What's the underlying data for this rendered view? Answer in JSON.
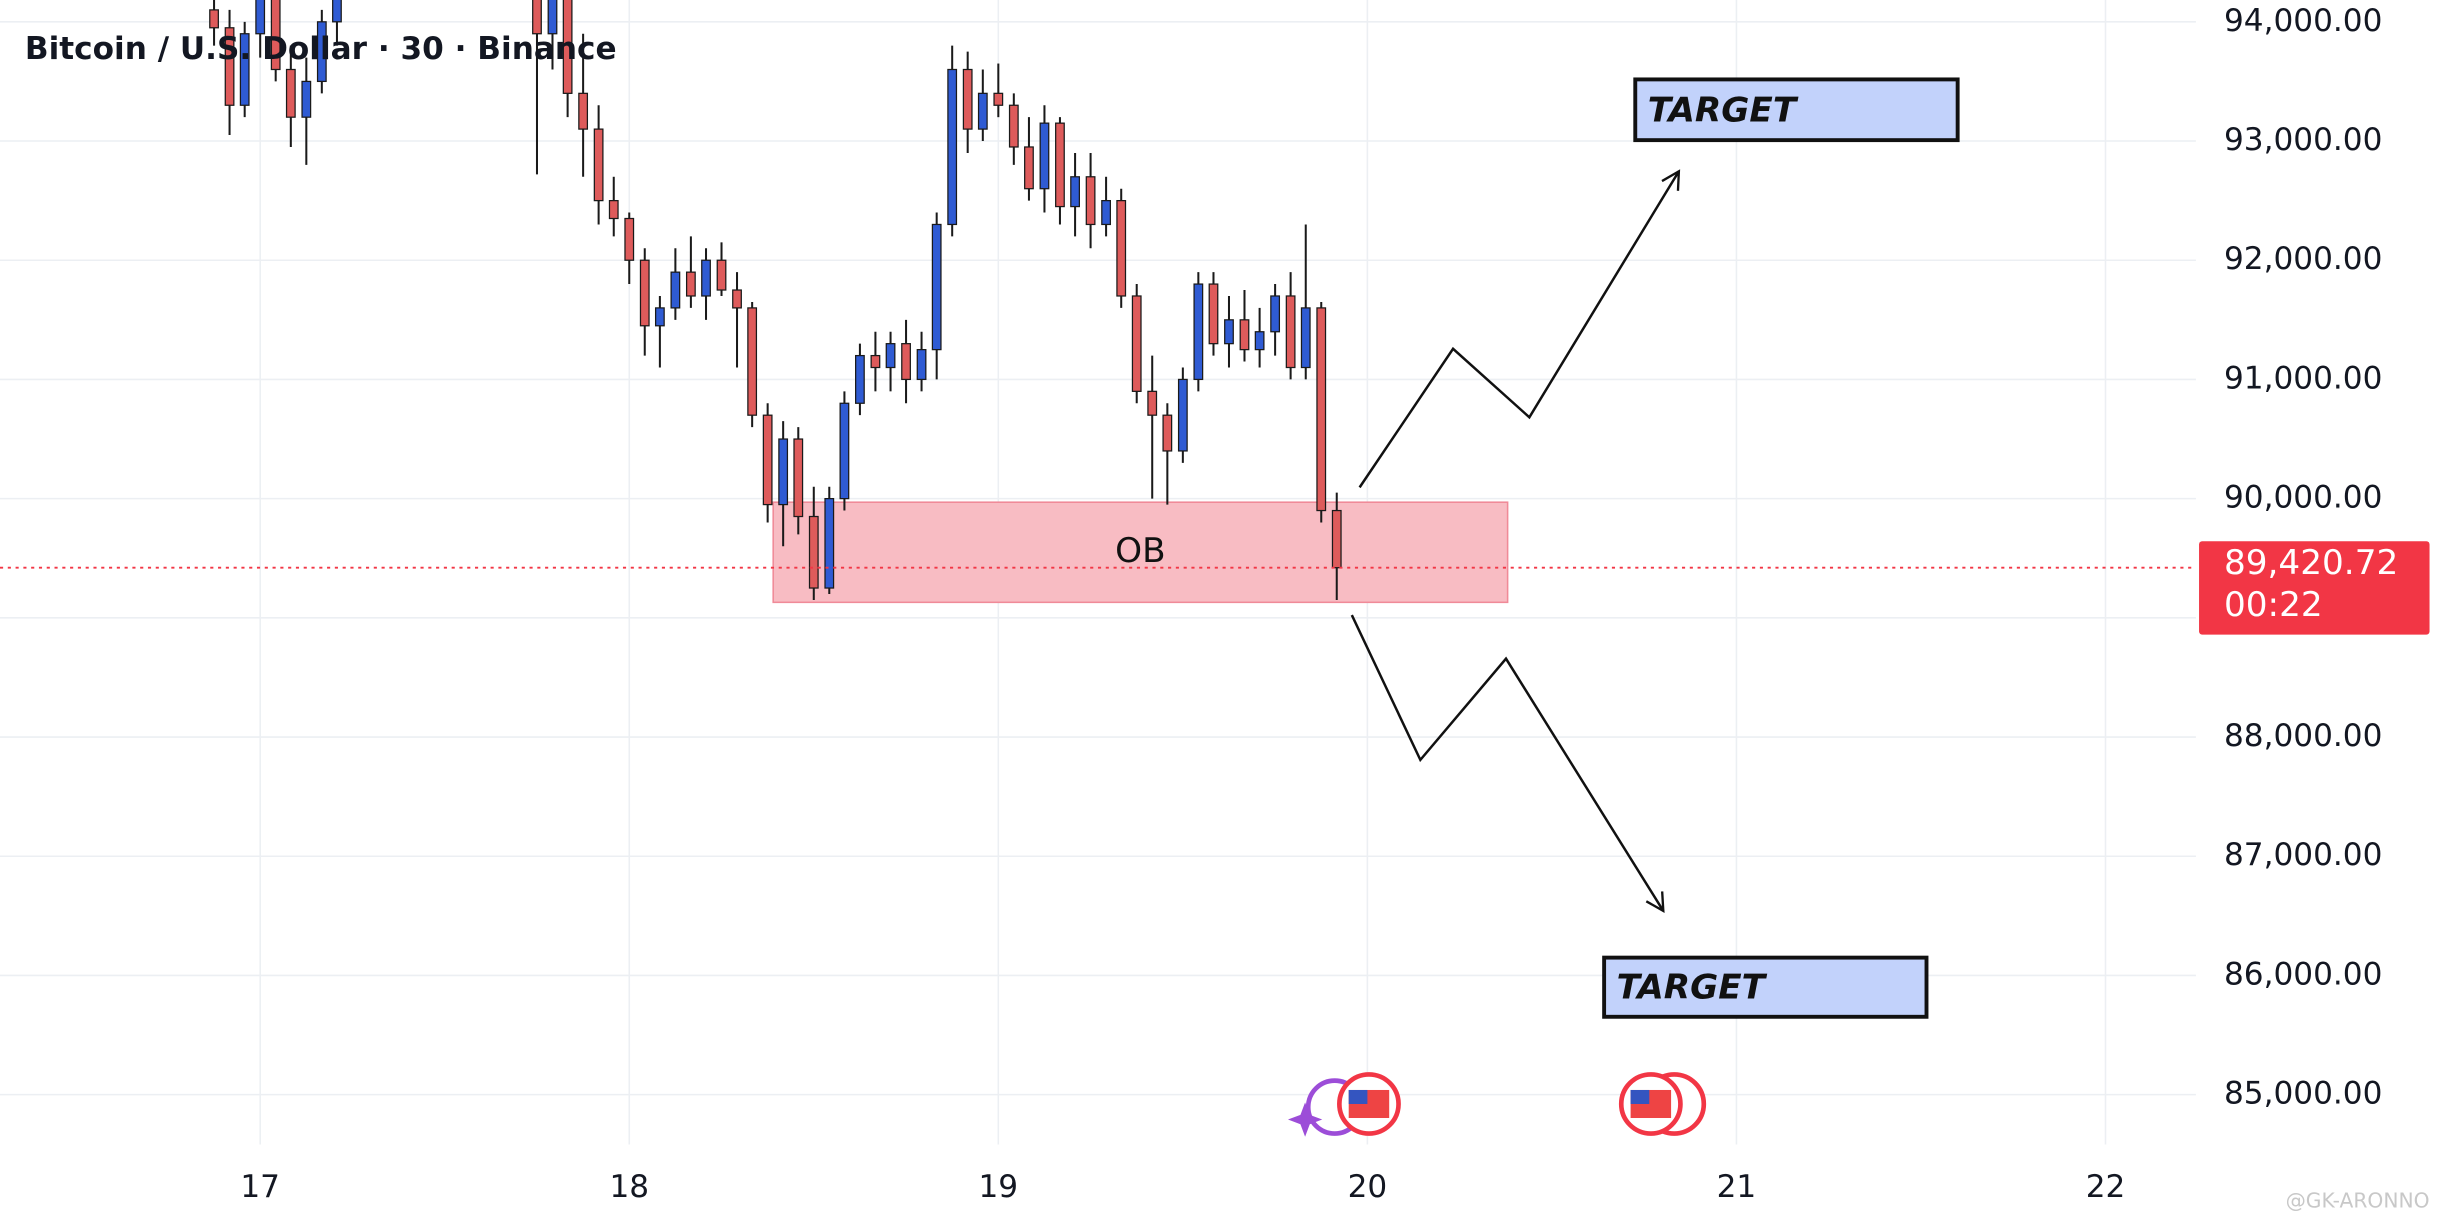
{
  "chart_data": {
    "type": "candlestick",
    "title": "Bitcoin / U.S. Dollar · 30 · Binance",
    "x": [
      16.875,
      16.917,
      16.958,
      17.0,
      17.042,
      17.083,
      17.125,
      17.167,
      17.208,
      17.75,
      17.792,
      17.833,
      17.875,
      17.917,
      17.958,
      18.0,
      18.042,
      18.083,
      18.125,
      18.167,
      18.208,
      18.25,
      18.292,
      18.333,
      18.375,
      18.417,
      18.458,
      18.5,
      18.542,
      18.583,
      18.625,
      18.667,
      18.708,
      18.75,
      18.792,
      18.833,
      18.875,
      18.917,
      18.958,
      19.0,
      19.042,
      19.083,
      19.125,
      19.167,
      19.208,
      19.25,
      19.292,
      19.333,
      19.375,
      19.417,
      19.458,
      19.5,
      19.542,
      19.583,
      19.625,
      19.667,
      19.708,
      19.75,
      19.792,
      19.833,
      19.875,
      19.917
    ],
    "open": [
      94100,
      93950,
      93300,
      93900,
      94200,
      93600,
      93200,
      93500,
      94000,
      94300,
      93900,
      94200,
      93400,
      93100,
      92500,
      92350,
      92000,
      91450,
      91600,
      91900,
      91700,
      92000,
      91750,
      91600,
      90700,
      89950,
      90500,
      89850,
      89250,
      90000,
      90800,
      91200,
      91100,
      91300,
      91000,
      91250,
      92300,
      93600,
      93100,
      93400,
      93300,
      92950,
      92600,
      93150,
      92450,
      92700,
      92300,
      92500,
      91700,
      90900,
      90700,
      90400,
      91000,
      91800,
      91300,
      91500,
      91250,
      91400,
      91700,
      91100,
      91600,
      89900
    ],
    "high": [
      94300,
      94100,
      94000,
      94300,
      94300,
      93800,
      93700,
      94100,
      94300,
      94400,
      94300,
      94400,
      93900,
      93300,
      92700,
      92400,
      92100,
      91700,
      92100,
      92200,
      92100,
      92150,
      91900,
      91650,
      90800,
      90650,
      90600,
      90100,
      90100,
      90900,
      91300,
      91400,
      91400,
      91500,
      91400,
      92400,
      93800,
      93750,
      93600,
      93650,
      93400,
      93200,
      93300,
      93200,
      92900,
      92900,
      92700,
      92600,
      91800,
      91200,
      90800,
      91100,
      91900,
      91900,
      91700,
      91750,
      91600,
      91800,
      91900,
      92300,
      91650,
      90050
    ],
    "low": [
      93800,
      93050,
      93200,
      93700,
      93500,
      92950,
      92800,
      93400,
      93800,
      92720,
      93600,
      93200,
      92700,
      92300,
      92200,
      91800,
      91200,
      91100,
      91500,
      91600,
      91500,
      91700,
      91100,
      90600,
      89800,
      89600,
      89700,
      89150,
      89200,
      89900,
      90700,
      90900,
      90900,
      90800,
      90900,
      91000,
      92200,
      92900,
      93000,
      93200,
      92800,
      92500,
      92400,
      92300,
      92200,
      92100,
      92200,
      91600,
      90800,
      90000,
      89950,
      90300,
      90900,
      91200,
      91100,
      91150,
      91100,
      91200,
      91000,
      91000,
      89800,
      89150
    ],
    "close": [
      93950,
      93300,
      93900,
      94200,
      93600,
      93200,
      93500,
      94000,
      94250,
      93900,
      94200,
      93400,
      93100,
      92500,
      92350,
      92000,
      91450,
      91600,
      91900,
      91700,
      92000,
      91750,
      91600,
      90700,
      89950,
      90500,
      89850,
      89250,
      90000,
      90800,
      91200,
      91100,
      91300,
      91000,
      91250,
      92300,
      93600,
      93100,
      93400,
      93300,
      92950,
      92600,
      93150,
      92450,
      92700,
      92300,
      92500,
      91700,
      90900,
      90700,
      90400,
      91000,
      91800,
      91300,
      91500,
      91250,
      91400,
      91700,
      91100,
      91600,
      89900,
      89420.72
    ],
    "up_color": "#2f5bd3",
    "down_color": "#de5b5b",
    "wick_color": "#1a1a1a",
    "xlim": [
      16.295,
      22.245
    ],
    "xticks": [
      17,
      18,
      19,
      20,
      21,
      22
    ],
    "ylim": [
      84582,
      94183
    ],
    "yticks": [
      {
        "value": 85000,
        "label": "85,000.00"
      },
      {
        "value": 86000,
        "label": "86,000.00"
      },
      {
        "value": 87000,
        "label": "87,000.00"
      },
      {
        "value": 88000,
        "label": "88,000.00"
      },
      {
        "value": 89000,
        "label": "89,000.00"
      },
      {
        "value": 90000,
        "label": "90,000.00"
      },
      {
        "value": 91000,
        "label": "91,000.00"
      },
      {
        "value": 92000,
        "label": "92,000.00"
      },
      {
        "value": 93000,
        "label": "93,000.00"
      },
      {
        "value": 94000,
        "label": "94,000.00"
      }
    ],
    "grid": true,
    "last_price": {
      "value": 89420.72,
      "label": "89,420.72",
      "color": "#f23645"
    },
    "countdown": "00:22",
    "zone": {
      "label": "OB",
      "x": [
        18.39,
        20.38
      ],
      "y": [
        89130,
        89970
      ],
      "color": "#f8bcc3"
    },
    "targets": [
      "TARGET",
      "TARGET"
    ],
    "watermark": "@GK-ARONNO"
  }
}
